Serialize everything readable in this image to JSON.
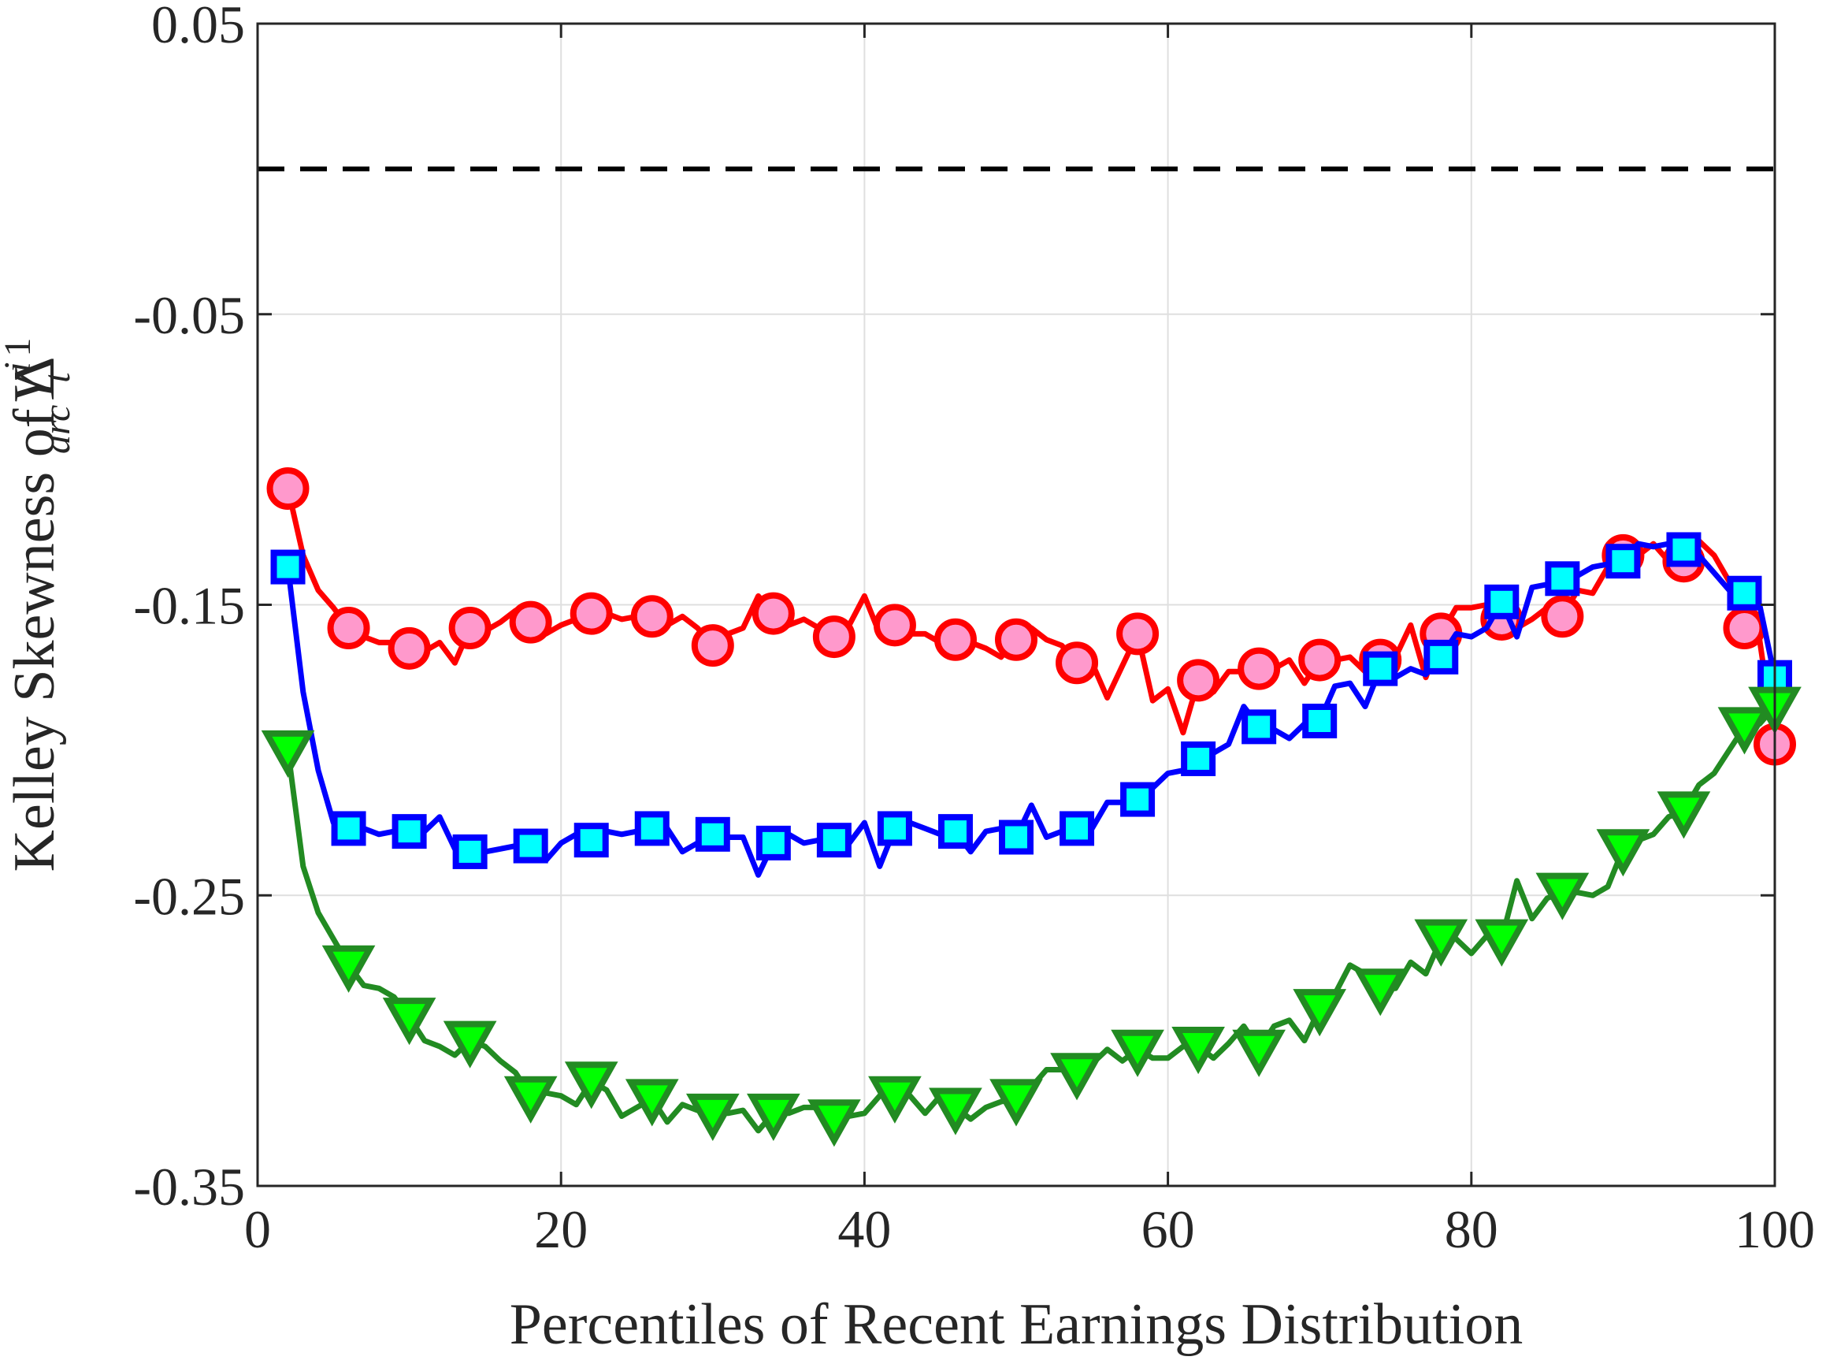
{
  "chart_data": {
    "type": "line",
    "xlabel": "Percentiles of Recent Earnings Distribution",
    "ylabel": {
      "prefix": "Kelley Skewness of ",
      "delta": "Δ",
      "delta_sup": "1",
      "delta_sub": "arc",
      "var": "Y",
      "var_sup": "i",
      "var_sub": "t"
    },
    "xlim": [
      0,
      100
    ],
    "ylim": [
      -0.35,
      0.05
    ],
    "xticks": [
      0,
      20,
      40,
      60,
      80,
      100
    ],
    "xtick_labels": [
      "0",
      "20",
      "40",
      "60",
      "80",
      "100"
    ],
    "yticks": [
      -0.35,
      -0.25,
      -0.15,
      -0.05,
      0.05
    ],
    "ytick_labels": [
      "-0.35",
      "-0.25",
      "-0.15",
      "-0.05",
      "0.05"
    ],
    "grid": true,
    "reference_line": {
      "y": 0,
      "style": "dashed",
      "color": "#000000"
    },
    "series": [
      {
        "marker": "circle",
        "line_color": "#ff0000",
        "marker_fill": "#ff99cc",
        "x": [
          2,
          3,
          4,
          5,
          6,
          7,
          8,
          9,
          10,
          11,
          12,
          13,
          14,
          15,
          16,
          17,
          18,
          19,
          20,
          21,
          22,
          23,
          24,
          25,
          26,
          27,
          28,
          29,
          30,
          31,
          32,
          33,
          34,
          35,
          36,
          37,
          38,
          39,
          40,
          41,
          42,
          43,
          44,
          45,
          46,
          47,
          48,
          49,
          50,
          51,
          52,
          53,
          54,
          55,
          56,
          57,
          58,
          59,
          60,
          61,
          62,
          63,
          64,
          65,
          66,
          67,
          68,
          69,
          70,
          71,
          72,
          73,
          74,
          75,
          76,
          77,
          78,
          79,
          80,
          81,
          82,
          83,
          84,
          85,
          86,
          87,
          88,
          89,
          90,
          91,
          92,
          93,
          94,
          95,
          96,
          97,
          98,
          99,
          100
        ],
        "y": [
          -0.11,
          -0.133,
          -0.145,
          -0.151,
          -0.158,
          -0.161,
          -0.163,
          -0.163,
          -0.165,
          -0.166,
          -0.163,
          -0.17,
          -0.158,
          -0.159,
          -0.156,
          -0.152,
          -0.156,
          -0.16,
          -0.157,
          -0.155,
          -0.153,
          -0.153,
          -0.155,
          -0.154,
          -0.154,
          -0.157,
          -0.154,
          -0.158,
          -0.164,
          -0.16,
          -0.158,
          -0.147,
          -0.153,
          -0.157,
          -0.155,
          -0.158,
          -0.161,
          -0.157,
          -0.147,
          -0.16,
          -0.157,
          -0.16,
          -0.16,
          -0.163,
          -0.162,
          -0.163,
          -0.165,
          -0.168,
          -0.162,
          -0.158,
          -0.162,
          -0.164,
          -0.17,
          -0.17,
          -0.182,
          -0.171,
          -0.16,
          -0.183,
          -0.179,
          -0.194,
          -0.176,
          -0.18,
          -0.173,
          -0.173,
          -0.172,
          -0.172,
          -0.169,
          -0.177,
          -0.169,
          -0.169,
          -0.168,
          -0.173,
          -0.169,
          -0.168,
          -0.157,
          -0.175,
          -0.16,
          -0.151,
          -0.151,
          -0.15,
          -0.155,
          -0.158,
          -0.155,
          -0.151,
          -0.154,
          -0.145,
          -0.146,
          -0.137,
          -0.133,
          -0.133,
          -0.129,
          -0.135,
          -0.135,
          -0.128,
          -0.133,
          -0.142,
          -0.158,
          -0.162,
          -0.198
        ]
      },
      {
        "marker": "square",
        "line_color": "#0000ff",
        "marker_fill": "#00ffff",
        "x": [
          2,
          3,
          4,
          5,
          6,
          7,
          8,
          9,
          10,
          11,
          12,
          13,
          14,
          15,
          16,
          17,
          18,
          19,
          20,
          21,
          22,
          23,
          24,
          25,
          26,
          27,
          28,
          29,
          30,
          31,
          32,
          33,
          34,
          35,
          36,
          37,
          38,
          39,
          40,
          41,
          42,
          43,
          44,
          45,
          46,
          47,
          48,
          49,
          50,
          51,
          52,
          53,
          54,
          55,
          56,
          57,
          58,
          59,
          60,
          61,
          62,
          63,
          64,
          65,
          66,
          67,
          68,
          69,
          70,
          71,
          72,
          73,
          74,
          75,
          76,
          77,
          78,
          79,
          80,
          81,
          82,
          83,
          84,
          85,
          86,
          87,
          88,
          89,
          90,
          91,
          92,
          93,
          94,
          95,
          96,
          97,
          98,
          99,
          100
        ],
        "y": [
          -0.137,
          -0.18,
          -0.207,
          -0.225,
          -0.227,
          -0.227,
          -0.229,
          -0.228,
          -0.228,
          -0.228,
          -0.223,
          -0.234,
          -0.235,
          -0.235,
          -0.234,
          -0.233,
          -0.233,
          -0.238,
          -0.232,
          -0.229,
          -0.231,
          -0.228,
          -0.229,
          -0.228,
          -0.227,
          -0.227,
          -0.235,
          -0.232,
          -0.229,
          -0.23,
          -0.23,
          -0.243,
          -0.232,
          -0.229,
          -0.232,
          -0.231,
          -0.231,
          -0.232,
          -0.225,
          -0.24,
          -0.227,
          -0.225,
          -0.227,
          -0.229,
          -0.228,
          -0.235,
          -0.228,
          -0.227,
          -0.23,
          -0.219,
          -0.23,
          -0.228,
          -0.227,
          -0.227,
          -0.218,
          -0.218,
          -0.217,
          -0.213,
          -0.208,
          -0.207,
          -0.203,
          -0.201,
          -0.198,
          -0.185,
          -0.192,
          -0.193,
          -0.196,
          -0.191,
          -0.19,
          -0.178,
          -0.177,
          -0.185,
          -0.172,
          -0.175,
          -0.172,
          -0.174,
          -0.168,
          -0.16,
          -0.161,
          -0.158,
          -0.149,
          -0.161,
          -0.144,
          -0.143,
          -0.141,
          -0.14,
          -0.137,
          -0.136,
          -0.135,
          -0.129,
          -0.13,
          -0.129,
          -0.131,
          -0.133,
          -0.139,
          -0.145,
          -0.146,
          -0.15,
          -0.175
        ]
      },
      {
        "marker": "triangle-down",
        "line_color": "#228b22",
        "marker_fill": "#00ff00",
        "x": [
          2,
          3,
          4,
          5,
          6,
          7,
          8,
          9,
          10,
          11,
          12,
          13,
          14,
          15,
          16,
          17,
          18,
          19,
          20,
          21,
          22,
          23,
          24,
          25,
          26,
          27,
          28,
          29,
          30,
          31,
          32,
          33,
          34,
          35,
          36,
          37,
          38,
          39,
          40,
          41,
          42,
          43,
          44,
          45,
          46,
          47,
          48,
          49,
          50,
          51,
          52,
          53,
          54,
          55,
          56,
          57,
          58,
          59,
          60,
          61,
          62,
          63,
          64,
          65,
          66,
          67,
          68,
          69,
          70,
          71,
          72,
          73,
          74,
          75,
          76,
          77,
          78,
          79,
          80,
          81,
          82,
          83,
          84,
          85,
          86,
          87,
          88,
          89,
          90,
          91,
          92,
          93,
          94,
          95,
          96,
          97,
          98,
          99,
          100
        ],
        "y": [
          -0.2,
          -0.24,
          -0.256,
          -0.265,
          -0.274,
          -0.281,
          -0.282,
          -0.285,
          -0.292,
          -0.3,
          -0.302,
          -0.305,
          -0.3,
          -0.302,
          -0.307,
          -0.311,
          -0.319,
          -0.318,
          -0.319,
          -0.322,
          -0.314,
          -0.317,
          -0.326,
          -0.323,
          -0.32,
          -0.328,
          -0.322,
          -0.324,
          -0.325,
          -0.325,
          -0.324,
          -0.331,
          -0.325,
          -0.325,
          -0.323,
          -0.323,
          -0.327,
          -0.326,
          -0.325,
          -0.319,
          -0.319,
          -0.319,
          -0.325,
          -0.319,
          -0.323,
          -0.327,
          -0.323,
          -0.321,
          -0.32,
          -0.316,
          -0.31,
          -0.31,
          -0.311,
          -0.308,
          -0.303,
          -0.307,
          -0.303,
          -0.306,
          -0.306,
          -0.302,
          -0.302,
          -0.306,
          -0.301,
          -0.295,
          -0.303,
          -0.295,
          -0.293,
          -0.3,
          -0.289,
          -0.284,
          -0.274,
          -0.277,
          -0.282,
          -0.282,
          -0.273,
          -0.277,
          -0.265,
          -0.265,
          -0.27,
          -0.264,
          -0.265,
          -0.245,
          -0.258,
          -0.251,
          -0.249,
          -0.249,
          -0.25,
          -0.247,
          -0.234,
          -0.231,
          -0.229,
          -0.223,
          -0.221,
          -0.212,
          -0.208,
          -0.2,
          -0.192,
          -0.191,
          -0.185
        ]
      }
    ]
  }
}
